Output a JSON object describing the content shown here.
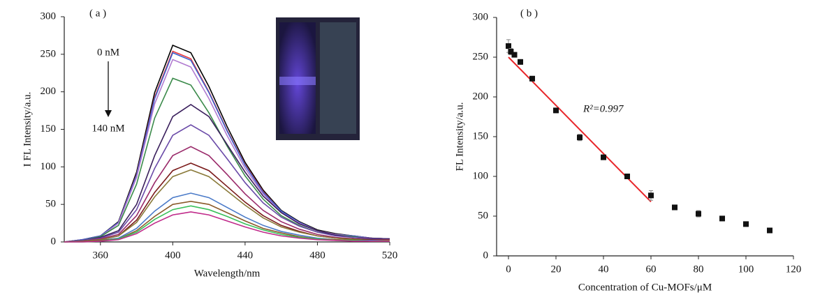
{
  "chart_data": [
    {
      "type": "line",
      "panel": "( a )",
      "xlabel": "Wavelength/nm",
      "ylabel": "I FL Intensity/a.u.",
      "annotations": {
        "start": "0 nM",
        "end": "140 nM"
      },
      "xlim": [
        340,
        520
      ],
      "xticks": [
        360,
        400,
        440,
        480,
        520
      ],
      "ylim": [
        0,
        300
      ],
      "yticks": [
        0,
        50,
        100,
        150,
        200,
        250,
        300
      ],
      "x": [
        340,
        350,
        360,
        370,
        380,
        390,
        400,
        410,
        420,
        430,
        440,
        450,
        460,
        470,
        480,
        490,
        500,
        510,
        520
      ],
      "series": [
        {
          "color": "#000000",
          "values": [
            0,
            3,
            8,
            27,
            93,
            199,
            262,
            252,
            207,
            154,
            106,
            69,
            42,
            27,
            16,
            11,
            8,
            5,
            4
          ]
        },
        {
          "color": "#e8383d",
          "values": [
            0,
            3,
            8,
            26,
            90,
            193,
            254,
            244,
            200,
            149,
            103,
            67,
            41,
            26,
            15,
            10,
            8,
            5,
            4
          ]
        },
        {
          "color": "#3a5fcd",
          "values": [
            0,
            3,
            8,
            26,
            89,
            191,
            252,
            242,
            199,
            148,
            102,
            66,
            41,
            26,
            15,
            10,
            8,
            5,
            4
          ]
        },
        {
          "color": "#b07ad0",
          "values": [
            0,
            2,
            7,
            25,
            86,
            184,
            243,
            233,
            191,
            142,
            98,
            64,
            39,
            25,
            15,
            10,
            7,
            5,
            4
          ]
        },
        {
          "color": "#3a8a4a",
          "values": [
            0,
            2,
            7,
            22,
            77,
            165,
            218,
            209,
            172,
            128,
            88,
            57,
            35,
            22,
            13,
            9,
            7,
            4,
            3
          ]
        },
        {
          "color": "#3a1f5c",
          "values": [
            0,
            2,
            6,
            15,
            50,
            115,
            167,
            183,
            167,
            130,
            93,
            61,
            39,
            24,
            15,
            9,
            6,
            5,
            4
          ]
        },
        {
          "color": "#6a4aa8",
          "values": [
            0,
            2,
            5,
            13,
            43,
            98,
            142,
            156,
            142,
            111,
            79,
            52,
            33,
            21,
            13,
            8,
            6,
            4,
            3
          ]
        },
        {
          "color": "#9a2a6a",
          "values": [
            0,
            1,
            4,
            10,
            35,
            79,
            115,
            127,
            115,
            90,
            64,
            42,
            27,
            17,
            10,
            6,
            4,
            3,
            3
          ]
        },
        {
          "color": "#7a1a1a",
          "values": [
            0,
            1,
            3,
            8,
            29,
            66,
            95,
            105,
            95,
            74,
            53,
            35,
            22,
            14,
            8,
            5,
            4,
            3,
            2
          ]
        },
        {
          "color": "#8a7a3a",
          "values": [
            0,
            1,
            3,
            8,
            26,
            60,
            87,
            96,
            87,
            68,
            49,
            32,
            20,
            13,
            8,
            5,
            3,
            2,
            2
          ]
        },
        {
          "color": "#4a7ac8",
          "values": [
            0,
            1,
            2,
            5,
            18,
            41,
            59,
            65,
            59,
            46,
            33,
            22,
            14,
            9,
            5,
            3,
            2,
            2,
            1
          ]
        },
        {
          "color": "#8a5a2a",
          "values": [
            0,
            1,
            2,
            4,
            15,
            34,
            50,
            54,
            50,
            39,
            28,
            18,
            12,
            7,
            4,
            3,
            2,
            1,
            1
          ]
        },
        {
          "color": "#3ac05a",
          "values": [
            0,
            0,
            1,
            4,
            13,
            30,
            43,
            48,
            43,
            34,
            24,
            16,
            10,
            6,
            4,
            2,
            2,
            1,
            1
          ]
        },
        {
          "color": "#c02a8a",
          "values": [
            0,
            0,
            1,
            3,
            11,
            25,
            36,
            40,
            36,
            28,
            20,
            13,
            8,
            5,
            3,
            2,
            1,
            1,
            1
          ]
        }
      ]
    },
    {
      "type": "scatter",
      "panel": "( b )",
      "xlabel": "Concentration of Cu-MOFs/μM",
      "ylabel": "FL Intensity/a.u.",
      "annotations": {
        "fit_label": "R²=0.997"
      },
      "xlim": [
        -5,
        120
      ],
      "xticks": [
        0,
        20,
        40,
        60,
        80,
        100,
        120
      ],
      "ylim": [
        0,
        300
      ],
      "yticks": [
        0,
        50,
        100,
        150,
        200,
        250,
        300
      ],
      "color": "#111111",
      "x": [
        0,
        1,
        2.5,
        5,
        10,
        20,
        30,
        40,
        50,
        60,
        70,
        80,
        90,
        100,
        110
      ],
      "values": [
        264,
        257,
        253,
        244,
        223,
        183,
        149,
        124,
        100,
        76,
        61,
        53,
        47,
        40,
        32
      ],
      "errors": [
        8,
        4,
        3,
        3,
        3,
        3,
        4,
        3,
        3,
        6,
        3,
        4,
        3,
        3,
        3
      ],
      "fit": {
        "color": "#e8262a",
        "x": [
          0,
          60
        ],
        "values": [
          250,
          68
        ]
      }
    }
  ]
}
